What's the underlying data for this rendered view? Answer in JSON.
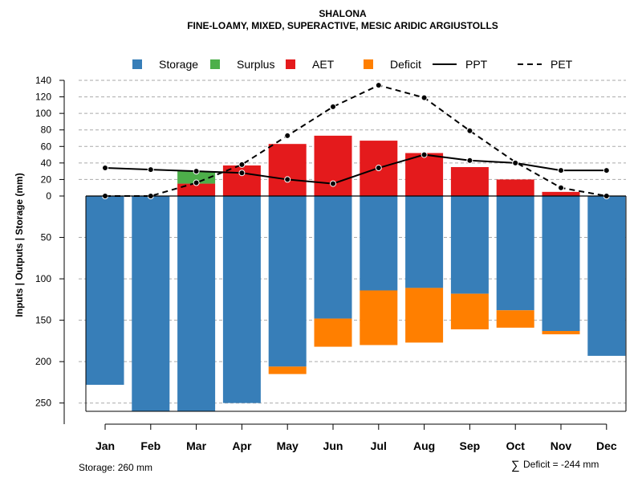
{
  "chart_data": {
    "type": "bar",
    "title": "SHALONA",
    "subtitle": "FINE-LOAMY, MIXED, SUPERACTIVE, MESIC ARIDIC ARGIUSTOLLS",
    "ylabel": "Inputs | Outputs | Storage     (mm)",
    "categories": [
      "Jan",
      "Feb",
      "Mar",
      "Apr",
      "May",
      "Jun",
      "Jul",
      "Aug",
      "Sep",
      "Oct",
      "Nov",
      "Dec"
    ],
    "upper_axis": {
      "ylim": [
        0,
        140
      ],
      "ticks": [
        0,
        20,
        40,
        60,
        80,
        100,
        120,
        140
      ],
      "tick_labels": [
        "0",
        "20",
        "40",
        "60",
        "80",
        "100",
        "120",
        "140"
      ]
    },
    "lower_axis": {
      "ylim": [
        0,
        260
      ],
      "ticks": [
        50,
        100,
        150,
        200,
        250
      ],
      "tick_labels": [
        "50",
        "100",
        "150",
        "200",
        "250"
      ]
    },
    "series": [
      {
        "name": "Storage",
        "color": "#377EB8",
        "axis": "lower",
        "values": [
          228,
          260,
          260,
          250,
          206,
          148,
          114,
          111,
          118,
          138,
          163,
          193
        ]
      },
      {
        "name": "Deficit",
        "color": "#FF7F00",
        "axis": "lower",
        "values": [
          0,
          0,
          0,
          0,
          9,
          34,
          66,
          66,
          43,
          21,
          4,
          0
        ]
      },
      {
        "name": "AET",
        "color": "#E41A1C",
        "axis": "upper",
        "values": [
          0,
          0,
          15,
          37,
          63,
          73,
          67,
          52,
          35,
          20,
          5,
          0
        ]
      },
      {
        "name": "Surplus",
        "color": "#4DAF4A",
        "axis": "upper",
        "values": [
          0,
          0,
          15,
          0,
          0,
          0,
          0,
          0,
          0,
          0,
          0,
          0
        ]
      },
      {
        "name": "PPT",
        "color": "#000000",
        "line": "solid",
        "axis": "upper",
        "values": [
          34,
          32,
          30,
          28,
          20,
          15,
          34,
          50,
          43,
          40,
          31,
          31
        ]
      },
      {
        "name": "PET",
        "color": "#000000",
        "line": "dashed",
        "axis": "upper",
        "values": [
          0,
          0,
          16,
          38,
          73,
          108,
          134,
          119,
          79,
          41,
          10,
          0
        ]
      }
    ],
    "legend": {
      "placement": "top",
      "entries": [
        {
          "name": "Storage",
          "symbol": "square",
          "color": "#377EB8"
        },
        {
          "name": "Surplus",
          "symbol": "square",
          "color": "#4DAF4A"
        },
        {
          "name": "AET",
          "symbol": "square",
          "color": "#E41A1C"
        },
        {
          "name": "Deficit",
          "symbol": "square",
          "color": "#FF7F00"
        },
        {
          "name": "PPT",
          "symbol": "solid-line",
          "color": "#000000"
        },
        {
          "name": "PET",
          "symbol": "dashed-line",
          "color": "#000000"
        }
      ]
    },
    "grid": true,
    "footer_left": "Storage: 260 mm",
    "footer_right_symbol": "∑",
    "footer_right": "Deficit = -244 mm"
  }
}
